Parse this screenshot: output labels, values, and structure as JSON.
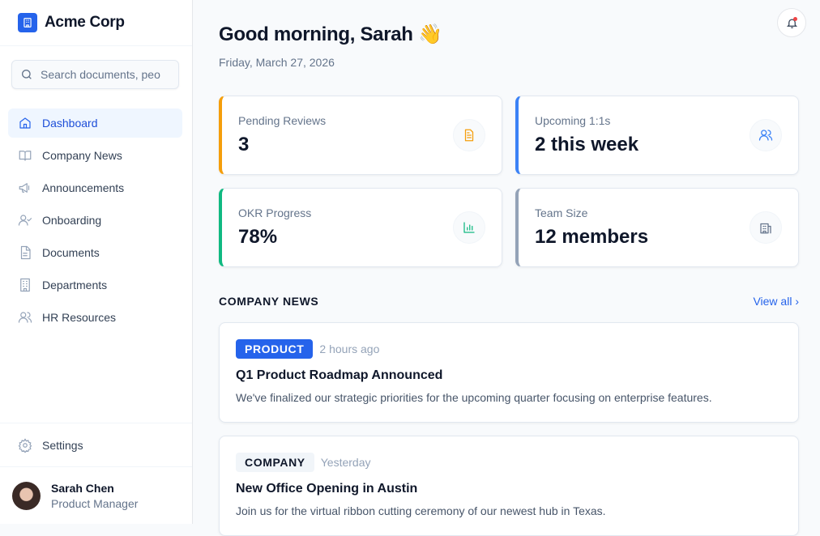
{
  "brand": {
    "name": "Acme Corp"
  },
  "search": {
    "placeholder": "Search documents, peo"
  },
  "nav": [
    {
      "label": "Dashboard",
      "icon": "home-icon",
      "active": true
    },
    {
      "label": "Company News",
      "icon": "book-icon"
    },
    {
      "label": "Announcements",
      "icon": "megaphone-icon"
    },
    {
      "label": "Onboarding",
      "icon": "user-check-icon"
    },
    {
      "label": "Documents",
      "icon": "file-icon"
    },
    {
      "label": "Departments",
      "icon": "building-icon"
    },
    {
      "label": "HR Resources",
      "icon": "users-icon"
    }
  ],
  "settings": {
    "label": "Settings"
  },
  "user": {
    "name": "Sarah Chen",
    "role": "Product Manager"
  },
  "header": {
    "greeting": "Good morning, Sarah",
    "emoji": "👋",
    "date": "Friday, March 27, 2026"
  },
  "stats": [
    {
      "label": "Pending Reviews",
      "value": "3",
      "color": "#f59e0b",
      "icon": "document-icon"
    },
    {
      "label": "Upcoming 1:1s",
      "value": "2 this week",
      "color": "#3b82f6",
      "icon": "users-icon"
    },
    {
      "label": "OKR Progress",
      "value": "78%",
      "color": "#10b981",
      "icon": "bar-chart-icon"
    },
    {
      "label": "Team Size",
      "value": "12 members",
      "color": "#94a3b8",
      "icon": "building-icon"
    }
  ],
  "news": {
    "title": "COMPANY NEWS",
    "view_all": "View all ›",
    "items": [
      {
        "tag": "PRODUCT",
        "time": "2 hours ago",
        "title": "Q1 Product Roadmap Announced",
        "body": "We've finalized our strategic priorities for the upcoming quarter focusing on enterprise features."
      },
      {
        "tag": "COMPANY",
        "time": "Yesterday",
        "title": "New Office Opening in Austin",
        "body": "Join us for the virtual ribbon cutting ceremony of our newest hub in Texas."
      }
    ]
  }
}
